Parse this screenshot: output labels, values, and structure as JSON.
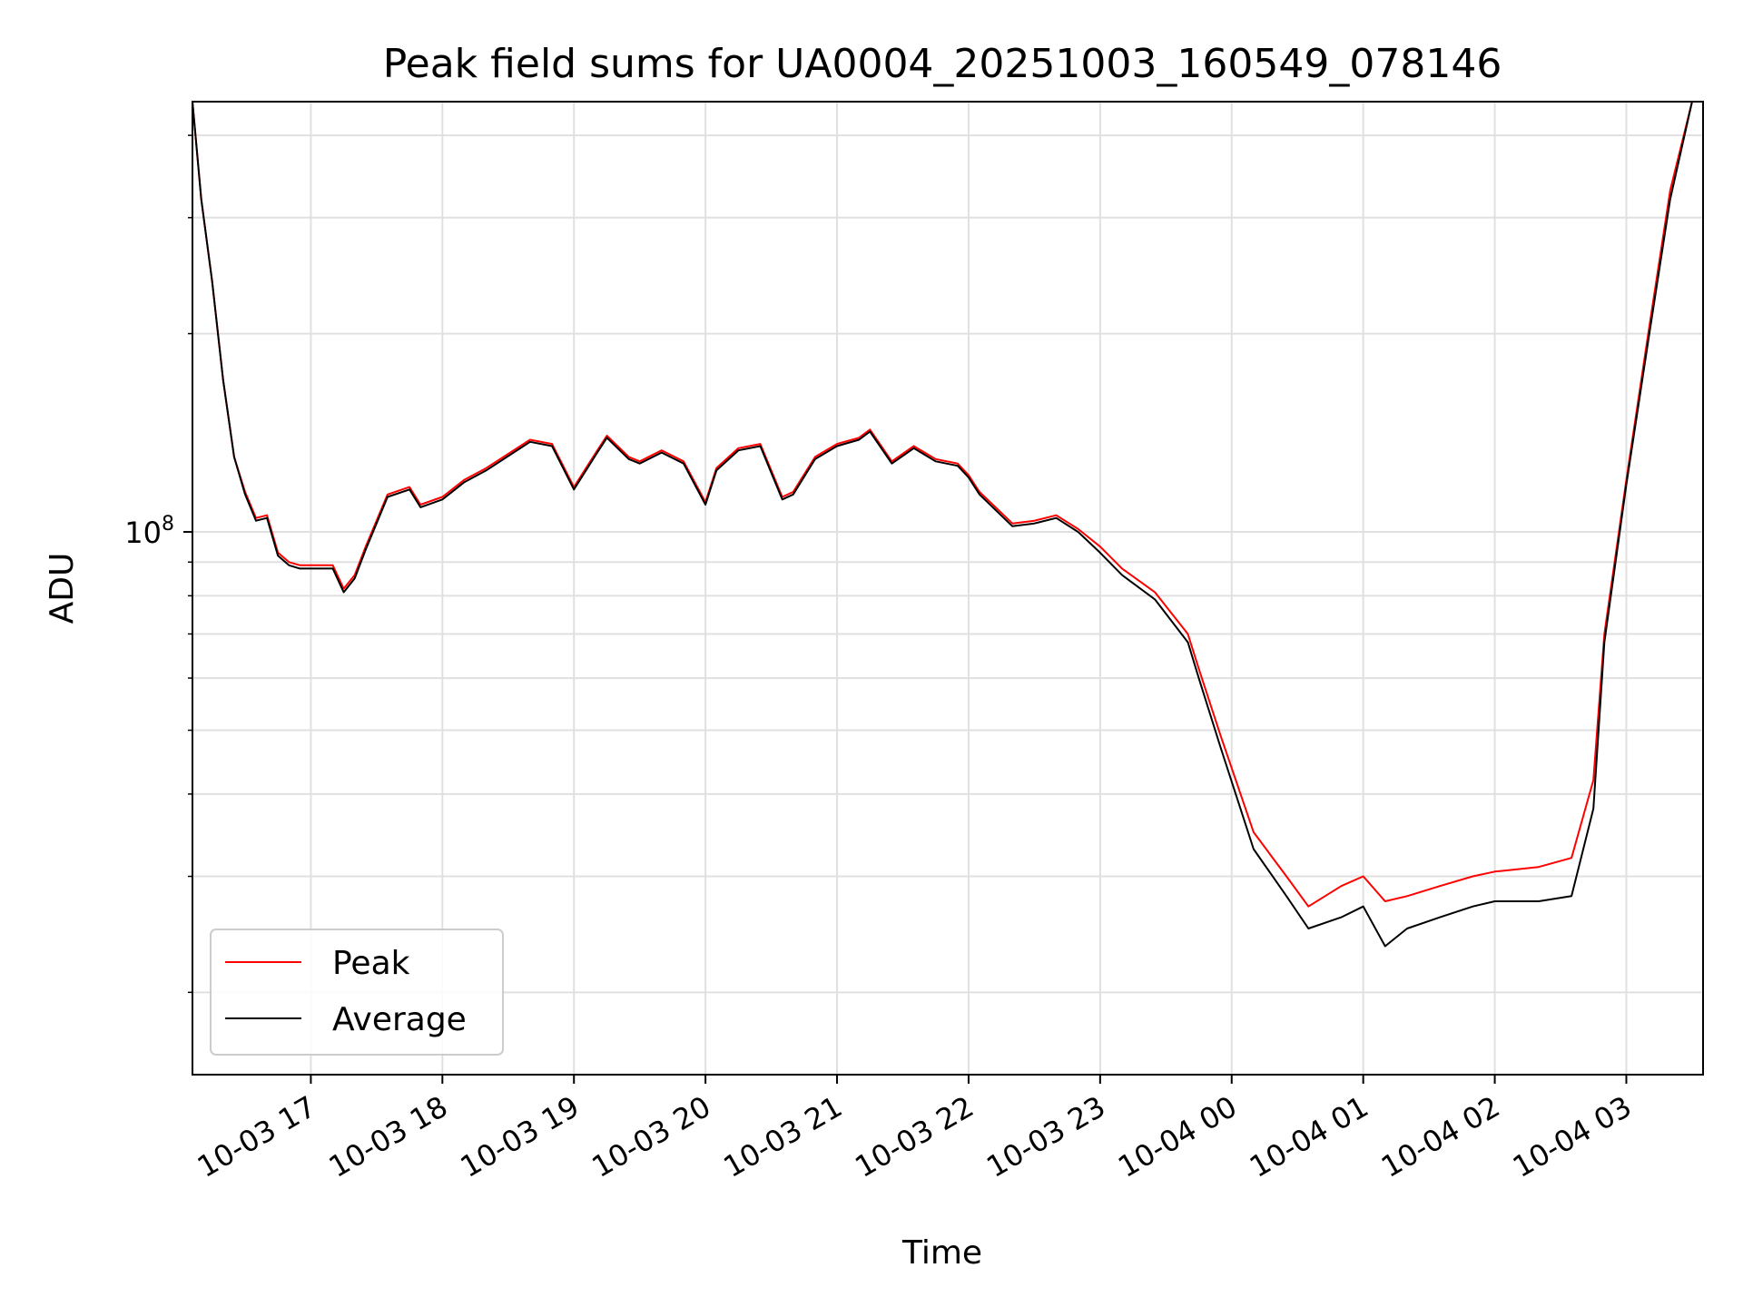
{
  "chart_data": {
    "type": "line",
    "title": "Peak field sums for UA0004_20251003_160549_078146",
    "xlabel": "Time",
    "ylabel": "ADU",
    "yscale": "log",
    "grid": true,
    "legend_placement": "lower-left",
    "xlim": [
      "2025-10-03 16:06",
      "2025-10-04 03:35"
    ],
    "ylim": [
      15000000.0,
      450000000.0
    ],
    "x_ticks": [
      "2025-10-03 17:00",
      "2025-10-03 18:00",
      "2025-10-03 19:00",
      "2025-10-03 20:00",
      "2025-10-03 21:00",
      "2025-10-03 22:00",
      "2025-10-03 23:00",
      "2025-10-04 00:00",
      "2025-10-04 01:00",
      "2025-10-04 02:00",
      "2025-10-04 03:00"
    ],
    "x_tick_labels": [
      "10-03 17",
      "10-03 18",
      "10-03 19",
      "10-03 20",
      "10-03 21",
      "10-03 22",
      "10-03 23",
      "10-04 00",
      "10-04 01",
      "10-04 02",
      "10-04 03"
    ],
    "y_major_ticks": [
      100000000.0
    ],
    "y_major_tick_labels": [
      {
        "base": "10",
        "exp": "8"
      }
    ],
    "y_minor_ticks": [
      20000000.0,
      30000000.0,
      40000000.0,
      50000000.0,
      60000000.0,
      70000000.0,
      80000000.0,
      90000000.0,
      200000000.0,
      300000000.0,
      400000000.0
    ],
    "x": [
      "2025-10-03 16:06",
      "2025-10-03 16:10",
      "2025-10-03 16:15",
      "2025-10-03 16:20",
      "2025-10-03 16:25",
      "2025-10-03 16:30",
      "2025-10-03 16:35",
      "2025-10-03 16:40",
      "2025-10-03 16:45",
      "2025-10-03 16:50",
      "2025-10-03 16:55",
      "2025-10-03 17:00",
      "2025-10-03 17:10",
      "2025-10-03 17:15",
      "2025-10-03 17:20",
      "2025-10-03 17:25",
      "2025-10-03 17:35",
      "2025-10-03 17:45",
      "2025-10-03 17:50",
      "2025-10-03 18:00",
      "2025-10-03 18:10",
      "2025-10-03 18:20",
      "2025-10-03 18:40",
      "2025-10-03 18:50",
      "2025-10-03 19:00",
      "2025-10-03 19:10",
      "2025-10-03 19:15",
      "2025-10-03 19:25",
      "2025-10-03 19:30",
      "2025-10-03 19:40",
      "2025-10-03 19:50",
      "2025-10-03 20:00",
      "2025-10-03 20:05",
      "2025-10-03 20:15",
      "2025-10-03 20:25",
      "2025-10-03 20:35",
      "2025-10-03 20:40",
      "2025-10-03 20:50",
      "2025-10-03 21:00",
      "2025-10-03 21:10",
      "2025-10-03 21:15",
      "2025-10-03 21:25",
      "2025-10-03 21:35",
      "2025-10-03 21:45",
      "2025-10-03 21:55",
      "2025-10-03 22:00",
      "2025-10-03 22:05",
      "2025-10-03 22:20",
      "2025-10-03 22:30",
      "2025-10-03 22:40",
      "2025-10-03 22:50",
      "2025-10-03 23:00",
      "2025-10-03 23:10",
      "2025-10-03 23:25",
      "2025-10-03 23:40",
      "2025-10-03 23:45",
      "2025-10-03 23:55",
      "2025-10-04 00:10",
      "2025-10-04 00:25",
      "2025-10-04 00:35",
      "2025-10-04 00:50",
      "2025-10-04 01:00",
      "2025-10-04 01:10",
      "2025-10-04 01:20",
      "2025-10-04 01:35",
      "2025-10-04 01:50",
      "2025-10-04 02:00",
      "2025-10-04 02:20",
      "2025-10-04 02:35",
      "2025-10-04 02:45",
      "2025-10-04 02:50",
      "2025-10-04 03:00",
      "2025-10-04 03:10",
      "2025-10-04 03:20",
      "2025-10-04 03:30",
      "2025-10-04 03:35"
    ],
    "series": [
      {
        "name": "Peak",
        "color": "#ff0000",
        "values": [
          450000000.0,
          320000000.0,
          240000000.0,
          170000000.0,
          130000000.0,
          115000000.0,
          105000000.0,
          106000000.0,
          93000000.0,
          90000000.0,
          89000000.0,
          89000000.0,
          89000000.0,
          82000000.0,
          86000000.0,
          95000000.0,
          114000000.0,
          117000000.0,
          110000000.0,
          113000000.0,
          120000000.0,
          125000000.0,
          138000000.0,
          136000000.0,
          117000000.0,
          132000000.0,
          140000000.0,
          130000000.0,
          128000000.0,
          133000000.0,
          128000000.0,
          111000000.0,
          125000000.0,
          134000000.0,
          136000000.0,
          113000000.0,
          115000000.0,
          130000000.0,
          136000000.0,
          139000000.0,
          143000000.0,
          128000000.0,
          135000000.0,
          129000000.0,
          127000000.0,
          122000000.0,
          115000000.0,
          103000000.0,
          104000000.0,
          106000000.0,
          101000000.0,
          95000000.0,
          88000000.0,
          81000000.0,
          70000000.0,
          62000000.0,
          49000000.0,
          35000000.0,
          30000000.0,
          27000000.0,
          29000000.0,
          30000000.0,
          27500000.0,
          28000000.0,
          29000000.0,
          30000000.0,
          30500000.0,
          31000000.0,
          32000000.0,
          42000000.0,
          70000000.0,
          120000000.0,
          200000000.0,
          330000000.0,
          450000000.0,
          450000000.0
        ]
      },
      {
        "name": "Average",
        "color": "#000000",
        "values": [
          450000000.0,
          320000000.0,
          240000000.0,
          170000000.0,
          130000000.0,
          114000000.0,
          104000000.0,
          105000000.0,
          92000000.0,
          89000000.0,
          88000000.0,
          88000000.0,
          88000000.0,
          81000000.0,
          85000000.0,
          94000000.0,
          113000000.0,
          116000000.0,
          109000000.0,
          112000000.0,
          119000000.0,
          124000000.0,
          137000000.0,
          135000000.0,
          116000000.0,
          131000000.0,
          139000000.0,
          129000000.0,
          127000000.0,
          132000000.0,
          127000000.0,
          110000000.0,
          124000000.0,
          133000000.0,
          135000000.0,
          112000000.0,
          114000000.0,
          129000000.0,
          135000000.0,
          138000000.0,
          142000000.0,
          127000000.0,
          134000000.0,
          128000000.0,
          126000000.0,
          121000000.0,
          114000000.0,
          102000000.0,
          103000000.0,
          105000000.0,
          100000000.0,
          93000000.0,
          86000000.0,
          79000000.0,
          68000000.0,
          60000000.0,
          47000000.0,
          33000000.0,
          28000000.0,
          25000000.0,
          26000000.0,
          27000000.0,
          23500000.0,
          25000000.0,
          26000000.0,
          27000000.0,
          27500000.0,
          27500000.0,
          28000000.0,
          38000000.0,
          68000000.0,
          118000000.0,
          195000000.0,
          320000000.0,
          450000000.0,
          450000000.0
        ]
      }
    ]
  }
}
